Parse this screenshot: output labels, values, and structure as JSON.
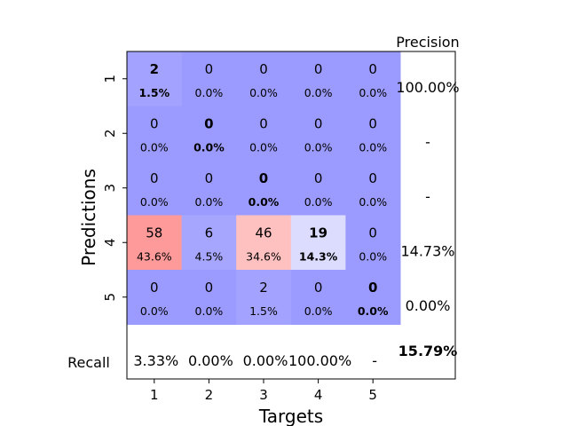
{
  "chart_data": {
    "type": "heatmap",
    "title": "",
    "xlabel": "Targets",
    "ylabel": "Predictions",
    "x_categories": [
      "1",
      "2",
      "3",
      "4",
      "5"
    ],
    "y_categories": [
      "1",
      "2",
      "3",
      "4",
      "5"
    ],
    "counts": [
      [
        2,
        0,
        0,
        0,
        0
      ],
      [
        0,
        0,
        0,
        0,
        0
      ],
      [
        0,
        0,
        0,
        0,
        0
      ],
      [
        58,
        6,
        46,
        19,
        0
      ],
      [
        0,
        0,
        2,
        0,
        0
      ]
    ],
    "percents": [
      [
        "1.5%",
        "0.0%",
        "0.0%",
        "0.0%",
        "0.0%"
      ],
      [
        "0.0%",
        "0.0%",
        "0.0%",
        "0.0%",
        "0.0%"
      ],
      [
        "0.0%",
        "0.0%",
        "0.0%",
        "0.0%",
        "0.0%"
      ],
      [
        "43.6%",
        "4.5%",
        "34.6%",
        "14.3%",
        "0.0%"
      ],
      [
        "0.0%",
        "0.0%",
        "1.5%",
        "0.0%",
        "0.0%"
      ]
    ],
    "precision_label": "Precision",
    "precision": [
      "100.00%",
      "-",
      "-",
      "14.73%",
      "0.00%"
    ],
    "recall_label": "Recall",
    "recall": [
      "3.33%",
      "0.00%",
      "0.00%",
      "100.00%",
      "-"
    ],
    "overall": "15.79%",
    "colors": {
      "zero": "#9b9bff",
      "scale": [
        {
          "v": 0,
          "c": "#9b9bff"
        },
        {
          "v": 2,
          "c": "#a3a3ff"
        },
        {
          "v": 6,
          "c": "#a6a6ff"
        },
        {
          "v": 19,
          "c": "#dcdcff"
        },
        {
          "v": 46,
          "c": "#ffc0c0"
        },
        {
          "v": 58,
          "c": "#ff9a9a"
        }
      ]
    }
  }
}
